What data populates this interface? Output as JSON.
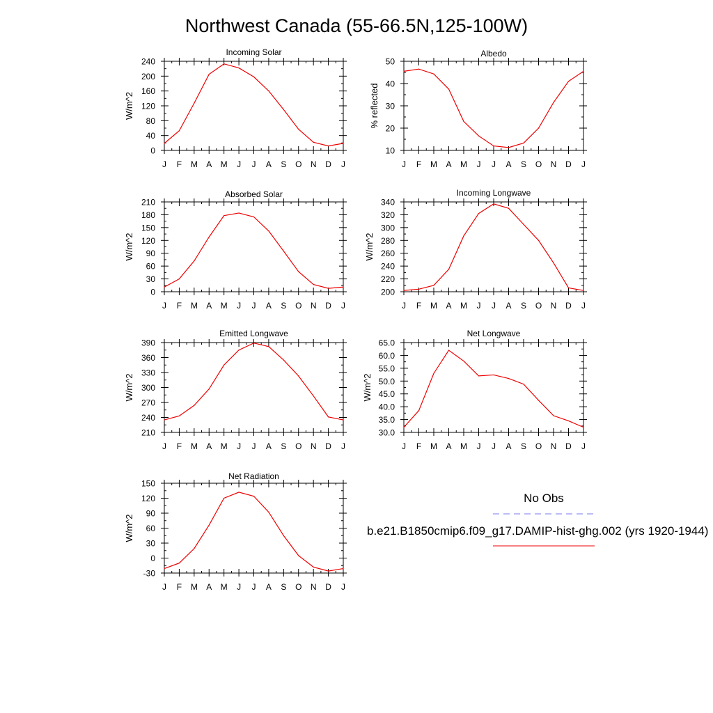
{
  "title": "Northwest Canada (55-66.5N,125-100W)",
  "months": [
    "J",
    "F",
    "M",
    "A",
    "M",
    "J",
    "J",
    "A",
    "S",
    "O",
    "N",
    "D",
    "J"
  ],
  "legend": {
    "obs_label": "No Obs",
    "obs_color": "#7777ee",
    "model_label": "b.e21.B1850cmip6.f09_g17.DAMIP-hist-ghg.002 (yrs 1920-1944)",
    "model_color": "#ee0000"
  },
  "chart_data": [
    {
      "type": "line",
      "title": "Incoming Solar",
      "ylabel": "W/m^2",
      "ylim": [
        0,
        240
      ],
      "yticks": [
        0,
        40,
        80,
        120,
        160,
        200,
        240
      ],
      "ytick_labels": [
        "0",
        "40",
        "80",
        "120",
        "160",
        "200",
        "240"
      ],
      "series": [
        {
          "values": [
            19,
            53,
            127,
            205,
            233,
            222,
            198,
            160,
            110,
            57,
            22,
            12,
            19
          ]
        }
      ]
    },
    {
      "type": "line",
      "title": "Albedo",
      "ylabel": "% reflected",
      "ylim": [
        10,
        50
      ],
      "yticks": [
        10,
        20,
        30,
        40,
        50
      ],
      "ytick_labels": [
        "10",
        "20",
        "30",
        "40",
        "50"
      ],
      "series": [
        {
          "values": [
            45.5,
            46.5,
            44.3,
            37.5,
            23,
            16.5,
            12,
            11.3,
            13.3,
            20,
            31.5,
            41,
            45.5
          ]
        }
      ]
    },
    {
      "type": "line",
      "title": "Absorbed Solar",
      "ylabel": "W/m^2",
      "ylim": [
        0,
        210
      ],
      "yticks": [
        0,
        30,
        60,
        90,
        120,
        150,
        180,
        210
      ],
      "ytick_labels": [
        "0",
        "30",
        "60",
        "90",
        "120",
        "150",
        "180",
        "210"
      ],
      "series": [
        {
          "values": [
            11,
            30,
            72,
            128,
            178,
            184,
            175,
            142,
            95,
            47,
            17,
            8,
            11
          ]
        }
      ]
    },
    {
      "type": "line",
      "title": "Incoming Longwave",
      "ylabel": "W/m^2",
      "ylim": [
        200,
        340
      ],
      "yticks": [
        200,
        220,
        240,
        260,
        280,
        300,
        320,
        340
      ],
      "ytick_labels": [
        "200",
        "220",
        "240",
        "260",
        "280",
        "300",
        "320",
        "340"
      ],
      "series": [
        {
          "values": [
            202,
            204,
            210,
            235,
            287,
            322,
            337,
            330,
            305,
            280,
            245,
            206,
            202
          ]
        }
      ]
    },
    {
      "type": "line",
      "title": "Emitted Longwave",
      "ylabel": "W/m^2",
      "ylim": [
        210,
        390
      ],
      "yticks": [
        210,
        240,
        270,
        300,
        330,
        360,
        390
      ],
      "ytick_labels": [
        "210",
        "240",
        "270",
        "300",
        "330",
        "360",
        "390"
      ],
      "series": [
        {
          "values": [
            235,
            243,
            264,
            297,
            345,
            375,
            389,
            382,
            355,
            323,
            283,
            241,
            235
          ]
        }
      ]
    },
    {
      "type": "line",
      "title": "Net Longwave",
      "ylabel": "W/m^2",
      "ylim": [
        30,
        65
      ],
      "yticks": [
        30,
        35,
        40,
        45,
        50,
        55,
        60,
        65
      ],
      "ytick_labels": [
        "30.0",
        "35.0",
        "40.0",
        "45.0",
        "50.0",
        "55.0",
        "60.0",
        "65.0"
      ],
      "series": [
        {
          "values": [
            32,
            38.5,
            53,
            62,
            57.8,
            52,
            52.4,
            51,
            48.8,
            42.5,
            36.5,
            34.5,
            32
          ]
        }
      ]
    },
    {
      "type": "line",
      "title": "Net Radiation",
      "ylabel": "W/m^2",
      "ylim": [
        -30,
        150
      ],
      "yticks": [
        -30,
        0,
        30,
        60,
        90,
        120,
        150
      ],
      "ytick_labels": [
        "-30",
        "0",
        "30",
        "60",
        "90",
        "120",
        "150"
      ],
      "series": [
        {
          "values": [
            -21,
            -10,
            19,
            66,
            120,
            132,
            124,
            92,
            45,
            5,
            -18,
            -26,
            -21
          ]
        }
      ]
    }
  ]
}
